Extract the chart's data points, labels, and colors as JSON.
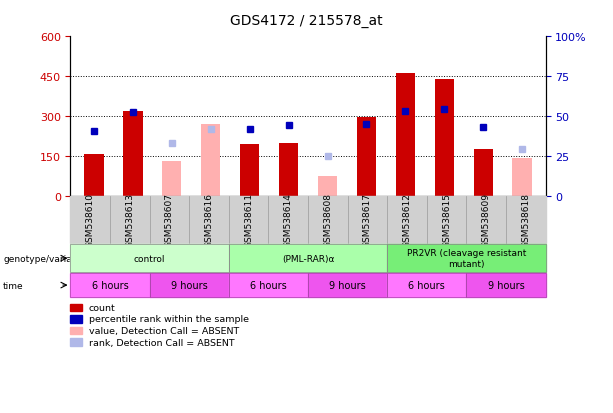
{
  "title": "GDS4172 / 215578_at",
  "samples": [
    "GSM538610",
    "GSM538613",
    "GSM538607",
    "GSM538616",
    "GSM538611",
    "GSM538614",
    "GSM538608",
    "GSM538617",
    "GSM538612",
    "GSM538615",
    "GSM538609",
    "GSM538618"
  ],
  "count_values": [
    155,
    320,
    null,
    null,
    195,
    200,
    null,
    295,
    460,
    440,
    175,
    null
  ],
  "count_absent_values": [
    null,
    null,
    130,
    270,
    null,
    null,
    75,
    null,
    null,
    null,
    null,
    140
  ],
  "percentile_values": [
    245,
    315,
    null,
    null,
    250,
    265,
    null,
    270,
    320,
    325,
    260,
    null
  ],
  "percentile_absent_values": [
    null,
    null,
    200,
    250,
    null,
    null,
    null,
    null,
    null,
    null,
    null,
    175
  ],
  "rank_absent_values": [
    null,
    null,
    null,
    null,
    null,
    null,
    148,
    null,
    null,
    null,
    null,
    null
  ],
  "ylim_left": [
    0,
    600
  ],
  "ylim_right": [
    0,
    100
  ],
  "count_color": "#CC0000",
  "count_absent_color": "#FFB0B0",
  "percentile_color": "#0000BB",
  "percentile_absent_color": "#B0B8E8",
  "rank_absent_color": "#B0B8E8",
  "genotype_groups": [
    {
      "label": "control",
      "start": 0,
      "end": 3,
      "color": "#CCFFCC"
    },
    {
      "label": "(PML-RAR)α",
      "start": 4,
      "end": 7,
      "color": "#AAFFAA"
    },
    {
      "label": "PR2VR (cleavage resistant\nmutant)",
      "start": 8,
      "end": 11,
      "color": "#77EE77"
    }
  ],
  "time_groups": [
    {
      "label": "6 hours",
      "start": 0,
      "end": 1,
      "color": "#FF77FF"
    },
    {
      "label": "9 hours",
      "start": 2,
      "end": 3,
      "color": "#EE55EE"
    },
    {
      "label": "6 hours",
      "start": 4,
      "end": 5,
      "color": "#FF77FF"
    },
    {
      "label": "9 hours",
      "start": 6,
      "end": 7,
      "color": "#EE55EE"
    },
    {
      "label": "6 hours",
      "start": 8,
      "end": 9,
      "color": "#FF77FF"
    },
    {
      "label": "9 hours",
      "start": 10,
      "end": 11,
      "color": "#EE55EE"
    }
  ],
  "legend_items": [
    {
      "label": "count",
      "color": "#CC0000"
    },
    {
      "label": "percentile rank within the sample",
      "color": "#0000BB"
    },
    {
      "label": "value, Detection Call = ABSENT",
      "color": "#FFB0B0"
    },
    {
      "label": "rank, Detection Call = ABSENT",
      "color": "#B0B8E8"
    }
  ]
}
